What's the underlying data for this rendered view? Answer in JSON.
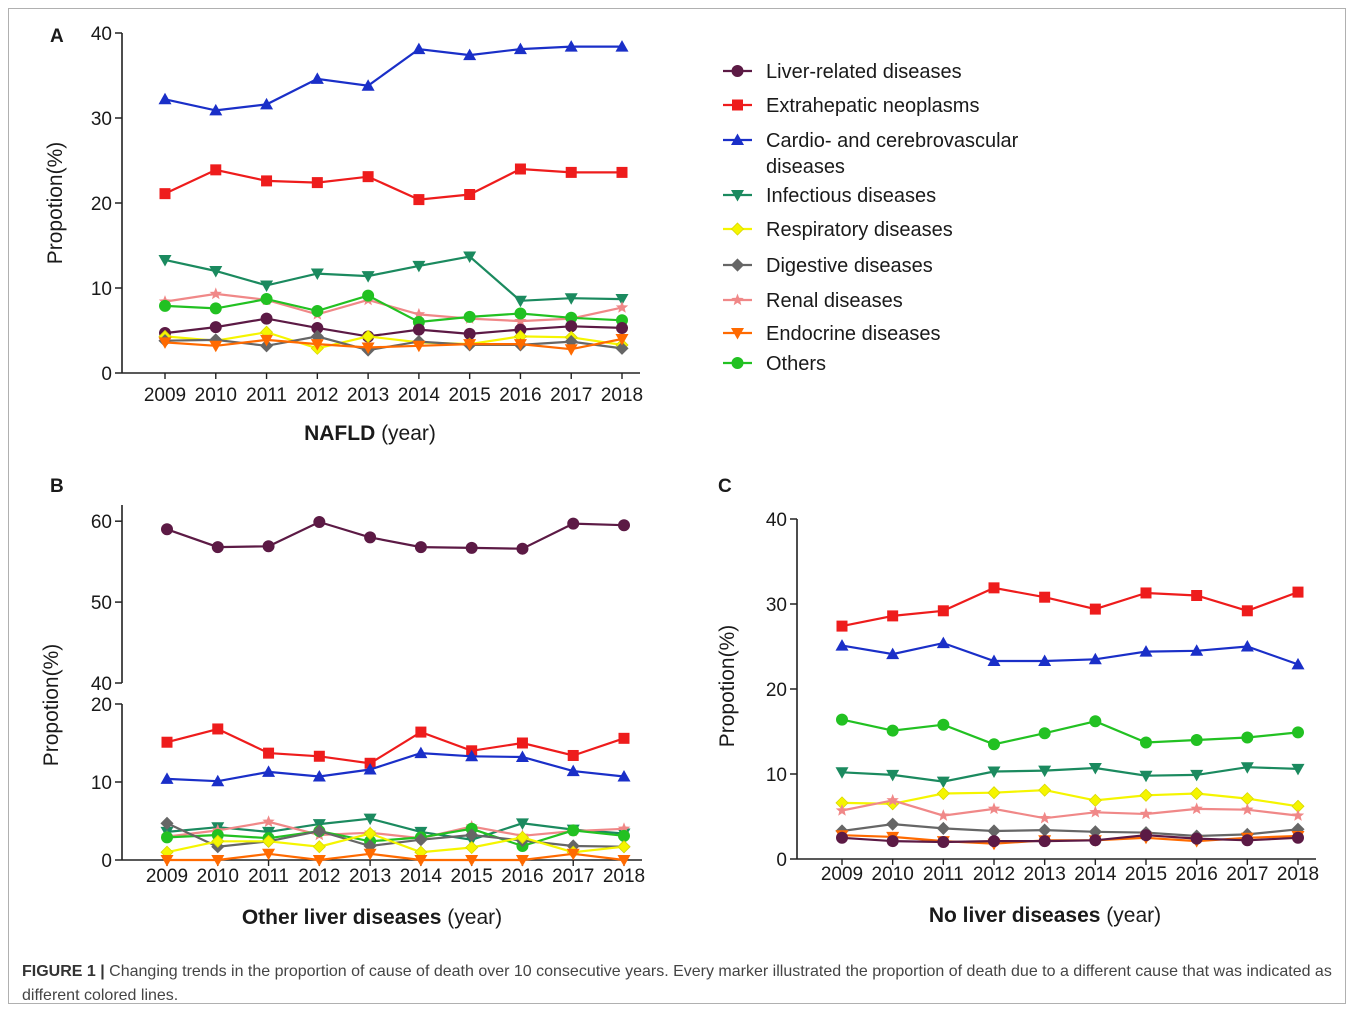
{
  "caption": {
    "label": "FIGURE 1 |",
    "text": "Changing trends in the proportion of cause of death over 10 consecutive years. Every marker illustrated the proportion of death due to a different cause that was indicated as different colored lines."
  },
  "legend": [
    {
      "key": "liver",
      "label": "Liver-related diseases",
      "color": "#5c1a45",
      "marker": "circle"
    },
    {
      "key": "extra",
      "label": "Extrahepatic neoplasms",
      "color": "#ee1c1c",
      "marker": "square"
    },
    {
      "key": "cardio",
      "label": "Cardio- and cerebrovascular",
      "label2": "diseases",
      "color": "#1a2fc8",
      "marker": "triangle-up"
    },
    {
      "key": "infect",
      "label": "Infectious diseases",
      "color": "#1b8a5f",
      "marker": "triangle-down"
    },
    {
      "key": "resp",
      "label": "Respiratory diseases",
      "color": "#f5f500",
      "marker": "diamond"
    },
    {
      "key": "dig",
      "label": "Digestive diseases",
      "color": "#666666",
      "marker": "diamond"
    },
    {
      "key": "renal",
      "label": "Renal diseases",
      "color": "#f08888",
      "marker": "star"
    },
    {
      "key": "endo",
      "label": "Endocrine diseases",
      "color": "#ff6a00",
      "marker": "triangle-down"
    },
    {
      "key": "others",
      "label": "Others",
      "color": "#22c122",
      "marker": "circle"
    }
  ],
  "chart_data": [
    {
      "panel": "A",
      "type": "line",
      "xlabel_bold": "NAFLD",
      "xlabel_rest": " (year)",
      "ylabel": "Propotion(%)",
      "x": [
        "2009",
        "2010",
        "2011",
        "2012",
        "2013",
        "2014",
        "2015",
        "2016",
        "2017",
        "2018"
      ],
      "ylim": [
        0,
        40
      ],
      "yticks": [
        0,
        10,
        20,
        30,
        40
      ],
      "series": [
        {
          "key": "cardio",
          "name": "Cardio- and cerebrovascular diseases",
          "values": [
            32.2,
            30.9,
            31.6,
            34.6,
            33.8,
            38.1,
            37.4,
            38.1,
            38.4,
            38.4
          ]
        },
        {
          "key": "extra",
          "name": "Extrahepatic neoplasms",
          "values": [
            21.1,
            23.9,
            22.6,
            22.4,
            23.1,
            20.4,
            21.0,
            24.0,
            23.6,
            23.6
          ]
        },
        {
          "key": "infect",
          "name": "Infectious diseases",
          "values": [
            13.3,
            12.0,
            10.3,
            11.7,
            11.4,
            12.6,
            13.7,
            8.5,
            8.8,
            8.7
          ]
        },
        {
          "key": "renal",
          "name": "Renal diseases",
          "values": [
            8.4,
            9.3,
            8.6,
            6.9,
            8.6,
            6.9,
            6.4,
            6.1,
            6.4,
            7.7
          ]
        },
        {
          "key": "others",
          "name": "Others",
          "values": [
            7.9,
            7.6,
            8.7,
            7.3,
            9.1,
            6.0,
            6.6,
            7.0,
            6.5,
            6.2
          ]
        },
        {
          "key": "liver",
          "name": "Liver-related diseases",
          "values": [
            4.7,
            5.4,
            6.4,
            5.3,
            4.3,
            5.1,
            4.6,
            5.1,
            5.5,
            5.3
          ]
        },
        {
          "key": "resp",
          "name": "Respiratory diseases",
          "values": [
            4.3,
            3.8,
            4.8,
            2.9,
            4.3,
            3.6,
            3.4,
            4.3,
            4.2,
            3.3
          ]
        },
        {
          "key": "dig",
          "name": "Digestive diseases",
          "values": [
            3.8,
            3.9,
            3.2,
            4.3,
            2.7,
            3.7,
            3.3,
            3.3,
            3.7,
            2.9
          ]
        },
        {
          "key": "endo",
          "name": "Endocrine diseases",
          "values": [
            3.6,
            3.2,
            3.9,
            3.4,
            3.0,
            3.2,
            3.4,
            3.4,
            2.8,
            4.0
          ]
        }
      ]
    },
    {
      "panel": "B",
      "type": "line",
      "xlabel_bold": "Other liver diseases",
      "xlabel_rest": " (year)",
      "ylabel": "Propotion(%)",
      "x": [
        "2009",
        "2010",
        "2011",
        "2012",
        "2013",
        "2014",
        "2015",
        "2016",
        "2017",
        "2018"
      ],
      "broken_axis": {
        "lower": [
          0,
          20
        ],
        "upper": [
          40,
          62
        ]
      },
      "yticks_lower": [
        0,
        10,
        20
      ],
      "yticks_upper": [
        40,
        50,
        60
      ],
      "series": [
        {
          "key": "liver",
          "name": "Liver-related diseases",
          "values": [
            59.0,
            56.8,
            56.9,
            59.9,
            58.0,
            56.8,
            56.7,
            56.6,
            59.7,
            59.5
          ]
        },
        {
          "key": "extra",
          "name": "Extrahepatic neoplasms",
          "values": [
            15.1,
            16.8,
            13.7,
            13.3,
            12.4,
            16.4,
            14.0,
            15.0,
            13.4,
            15.6
          ]
        },
        {
          "key": "cardio",
          "name": "Cardio- and cerebrovascular diseases",
          "values": [
            10.4,
            10.1,
            11.3,
            10.7,
            11.6,
            13.7,
            13.3,
            13.2,
            11.4,
            10.7
          ]
        },
        {
          "key": "infect",
          "name": "Infectious diseases",
          "values": [
            3.6,
            4.2,
            3.6,
            4.6,
            5.3,
            3.6,
            2.6,
            4.7,
            3.9,
            3.4
          ]
        },
        {
          "key": "renal",
          "name": "Renal diseases",
          "values": [
            3.0,
            3.8,
            4.9,
            3.2,
            3.5,
            2.8,
            4.3,
            3.1,
            3.7,
            4.0
          ]
        },
        {
          "key": "others",
          "name": "Others",
          "values": [
            2.9,
            3.2,
            2.8,
            3.7,
            2.4,
            2.9,
            4.0,
            1.8,
            3.8,
            3.1
          ]
        },
        {
          "key": "dig",
          "name": "Digestive diseases",
          "values": [
            4.7,
            1.7,
            2.4,
            3.7,
            1.8,
            2.6,
            3.2,
            2.5,
            1.8,
            1.7
          ]
        },
        {
          "key": "resp",
          "name": "Respiratory diseases",
          "values": [
            1.0,
            2.4,
            2.4,
            1.7,
            3.4,
            1.0,
            1.6,
            2.9,
            1.0,
            1.7
          ]
        },
        {
          "key": "endo",
          "name": "Endocrine diseases",
          "values": [
            0.0,
            0.0,
            0.8,
            0.0,
            0.8,
            0.0,
            0.0,
            0.0,
            0.8,
            0.0
          ]
        }
      ]
    },
    {
      "panel": "C",
      "type": "line",
      "xlabel_bold": "No liver diseases",
      "xlabel_rest": " (year)",
      "ylabel": "Propotion(%)",
      "x": [
        "2009",
        "2010",
        "2011",
        "2012",
        "2013",
        "2014",
        "2015",
        "2016",
        "2017",
        "2018"
      ],
      "ylim": [
        0,
        40
      ],
      "yticks": [
        0,
        10,
        20,
        30,
        40
      ],
      "series": [
        {
          "key": "extra",
          "name": "Extrahepatic neoplasms",
          "values": [
            27.4,
            28.6,
            29.2,
            31.9,
            30.8,
            29.4,
            31.3,
            31.0,
            29.2,
            31.4
          ]
        },
        {
          "key": "cardio",
          "name": "Cardio- and cerebrovascular diseases",
          "values": [
            25.1,
            24.1,
            25.4,
            23.3,
            23.3,
            23.5,
            24.4,
            24.5,
            25.0,
            22.9
          ]
        },
        {
          "key": "others",
          "name": "Others",
          "values": [
            16.4,
            15.1,
            15.8,
            13.5,
            14.8,
            16.2,
            13.7,
            14.0,
            14.3,
            14.9
          ]
        },
        {
          "key": "infect",
          "name": "Infectious diseases",
          "values": [
            10.2,
            9.9,
            9.1,
            10.3,
            10.4,
            10.7,
            9.8,
            9.9,
            10.8,
            10.6
          ]
        },
        {
          "key": "resp",
          "name": "Respiratory diseases",
          "values": [
            6.6,
            6.5,
            7.7,
            7.8,
            8.1,
            6.9,
            7.5,
            7.7,
            7.1,
            6.2
          ]
        },
        {
          "key": "renal",
          "name": "Renal diseases",
          "values": [
            5.7,
            6.9,
            5.1,
            5.9,
            4.8,
            5.5,
            5.3,
            5.9,
            5.8,
            5.1
          ]
        },
        {
          "key": "dig",
          "name": "Digestive diseases",
          "values": [
            3.3,
            4.1,
            3.6,
            3.3,
            3.4,
            3.2,
            3.1,
            2.7,
            2.9,
            3.5
          ]
        },
        {
          "key": "endo",
          "name": "Endocrine diseases",
          "values": [
            2.8,
            2.6,
            2.1,
            1.8,
            2.2,
            2.2,
            2.5,
            2.1,
            2.5,
            2.7
          ]
        },
        {
          "key": "liver",
          "name": "Liver-related diseases",
          "values": [
            2.5,
            2.1,
            2.0,
            2.1,
            2.1,
            2.2,
            2.8,
            2.4,
            2.2,
            2.5
          ]
        }
      ]
    }
  ]
}
